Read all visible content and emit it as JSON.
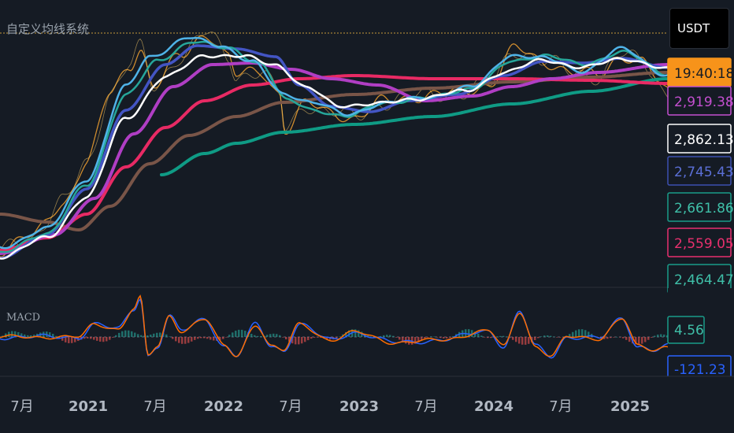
{
  "indicator_title": "自定义均线系统",
  "currency": "USDT",
  "main_panel": {
    "price_labels": [
      {
        "text": "19:40:18",
        "bg": "#f7931a",
        "border": "#f7931a",
        "color": "#151b24"
      },
      {
        "text": "2,919.38",
        "bg": "#151b24",
        "border": "#c44fd0",
        "color": "#c44fd0"
      },
      {
        "text": "2,862.13",
        "bg": "#151b24",
        "border": "#ffffff",
        "color": "#ffffff"
      },
      {
        "text": "2,745.43",
        "bg": "#151b24",
        "border": "#3d50b0",
        "color": "#5b6fd6"
      },
      {
        "text": "2,661.86",
        "bg": "#151b24",
        "border": "#1a9c8a",
        "color": "#3fbfa8"
      },
      {
        "text": "2,559.05",
        "bg": "#151b24",
        "border": "#e8306e",
        "color": "#e8306e"
      },
      {
        "text": "2,464.47",
        "bg": "#151b24",
        "border": "#1a9c8a",
        "color": "#3fbfa8"
      }
    ]
  },
  "macd_panel": {
    "title": "MACD",
    "labels": [
      {
        "text": "4.56",
        "bg": "#151b24",
        "border": "#1a9c8a",
        "color": "#3fbfa8"
      },
      {
        "text": "-121.23",
        "bg": "#151b24",
        "border": "#2962ff",
        "color": "#2962ff"
      }
    ]
  },
  "chart_data": {
    "type": "line",
    "x_tick_labels": [
      "7月",
      "2021",
      "7月",
      "2022",
      "7月",
      "2023",
      "7月",
      "2024",
      "7月",
      "2025"
    ],
    "x_tick_bold": [
      false,
      true,
      false,
      true,
      false,
      true,
      false,
      true,
      false,
      true
    ],
    "series_colors": {
      "ma_white": "#ffffff",
      "ma_lightblue": "#4fb3e8",
      "ma_teal": "#26a69a",
      "ma_blue": "#4355c4",
      "ma_purple": "#b03ec4",
      "ma_pink": "#e82a64",
      "ma_brown": "#795548",
      "ma_green": "#0f9b85",
      "candle_orange": "#f0a030",
      "macd_line": "#2962ff",
      "signal_line": "#ff6d00"
    },
    "grid": false,
    "legend": "none"
  }
}
